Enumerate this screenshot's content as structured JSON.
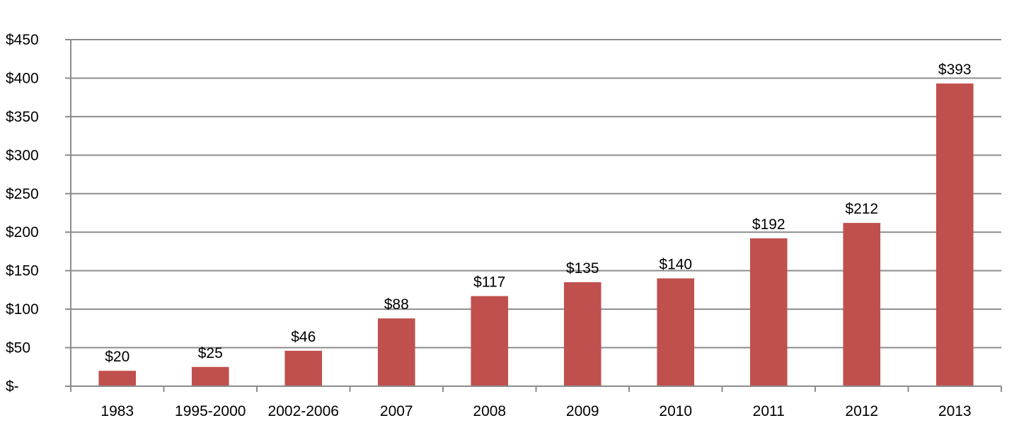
{
  "chart_data": {
    "type": "bar",
    "title": "",
    "xlabel": "",
    "ylabel": "",
    "categories": [
      "1983",
      "1995-2000",
      "2002-2006",
      "2007",
      "2008",
      "2009",
      "2010",
      "2011",
      "2012",
      "2013"
    ],
    "values": [
      20,
      25,
      46,
      88,
      117,
      135,
      140,
      192,
      212,
      393
    ],
    "data_labels": [
      "$20",
      "$25",
      "$46",
      "$88",
      "$117",
      "$135",
      "$140",
      "$192",
      "$212",
      "$393"
    ],
    "y_ticks": [
      0,
      50,
      100,
      150,
      200,
      250,
      300,
      350,
      400,
      450
    ],
    "y_tick_labels": [
      "$-",
      "$50",
      "$100",
      "$150",
      "$200",
      "$250",
      "$300",
      "$350",
      "$400",
      "$450"
    ],
    "ylim": [
      0,
      450
    ],
    "grid": true,
    "legend": "none",
    "bar_color": "#c0504d",
    "grid_color": "#8c8c8c"
  }
}
